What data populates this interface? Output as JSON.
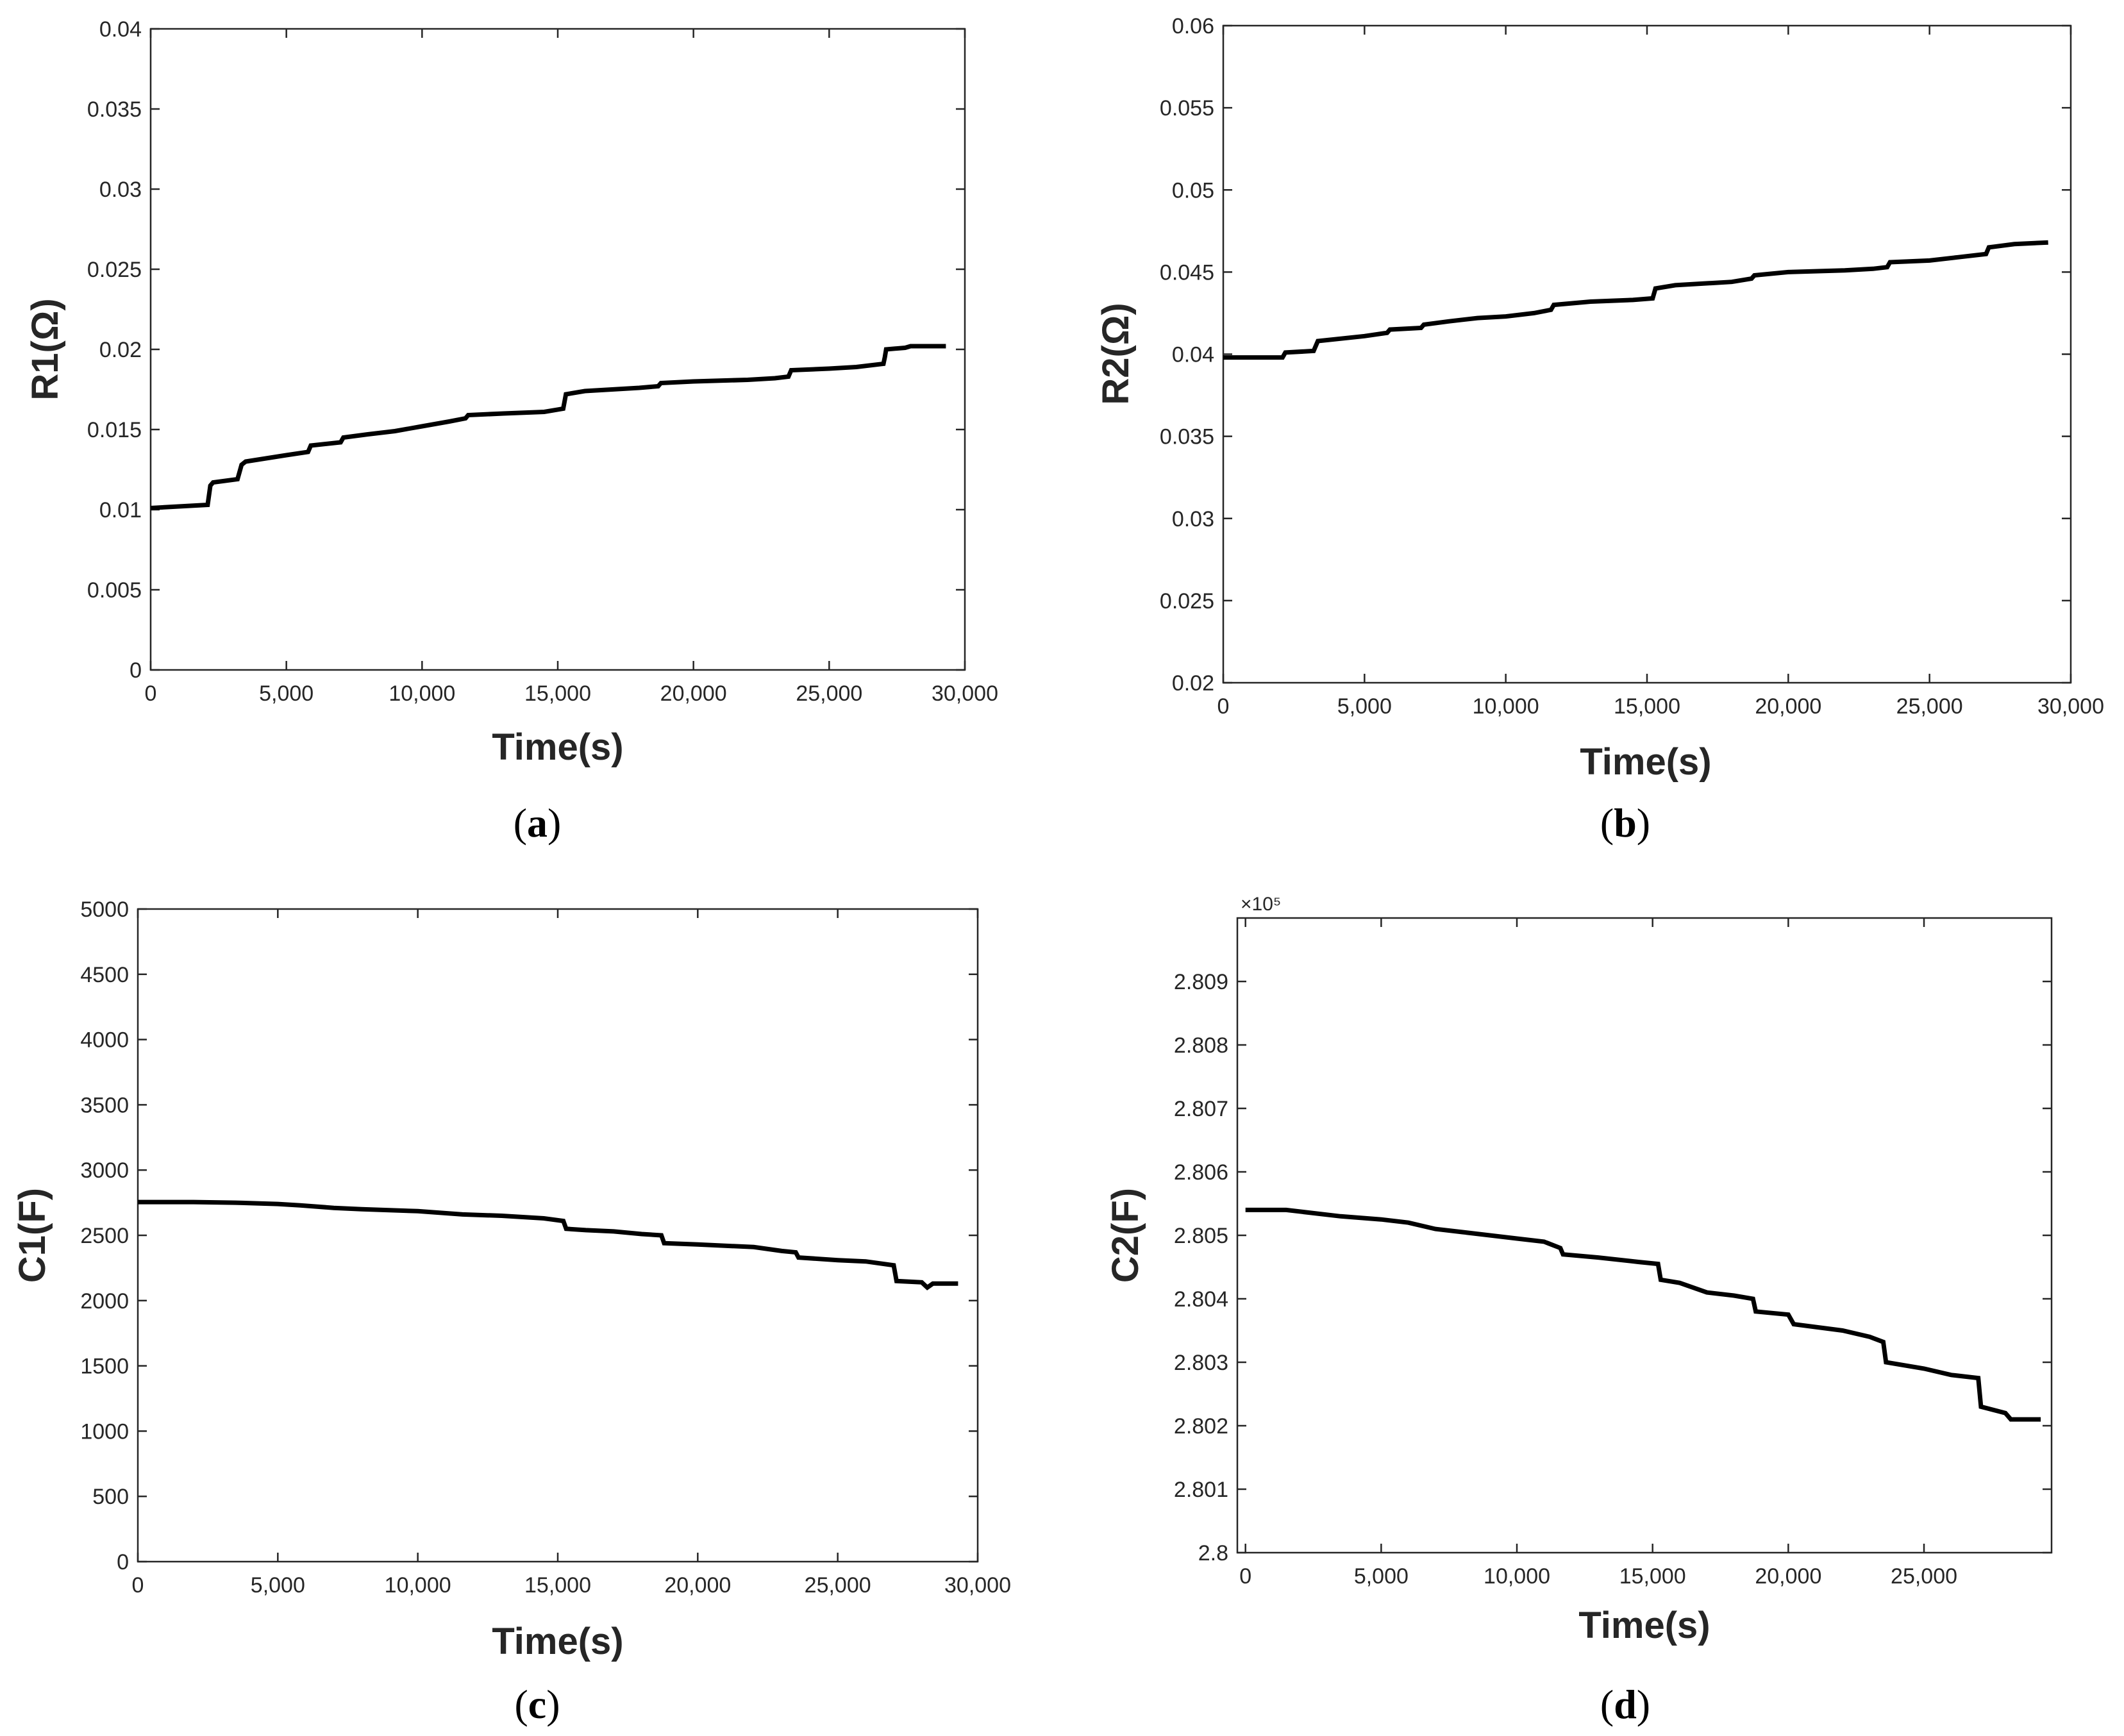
{
  "colors": {
    "series": "#000000",
    "axis": "#262626",
    "background": "#ffffff"
  },
  "chart_data": [
    {
      "id": "a",
      "type": "line",
      "caption": "(a)",
      "caption_letter": "a",
      "xlabel": "Time(s)",
      "ylabel": "R1(Ω)",
      "xlim": [
        0,
        30000
      ],
      "ylim": [
        0,
        0.04
      ],
      "xticks": [
        0,
        5000,
        10000,
        15000,
        20000,
        25000,
        30000
      ],
      "xtick_labels": [
        "0",
        "5,000",
        "10,000",
        "15,000",
        "20,000",
        "25,000",
        "30,000"
      ],
      "yticks": [
        0,
        0.005,
        0.01,
        0.015,
        0.02,
        0.025,
        0.03,
        0.035,
        0.04
      ],
      "ytick_labels": [
        "0",
        "0.005",
        "0.01",
        "0.015",
        "0.02",
        "0.025",
        "0.03",
        "0.035",
        "0.04"
      ],
      "exponent_label": "",
      "series": [
        {
          "name": "R1",
          "x": [
            0,
            2100,
            2200,
            2300,
            3200,
            3350,
            3500,
            5000,
            5800,
            5900,
            7000,
            7100,
            8000,
            9000,
            10000,
            11000,
            11600,
            11700,
            13000,
            14500,
            15200,
            15300,
            16000,
            17000,
            18000,
            18700,
            18800,
            20000,
            22000,
            23000,
            23500,
            23600,
            25000,
            26000,
            27000,
            27050,
            27100,
            27800,
            28000,
            29300
          ],
          "y": [
            0.0101,
            0.0103,
            0.0115,
            0.0117,
            0.0119,
            0.0128,
            0.013,
            0.0134,
            0.0136,
            0.014,
            0.0142,
            0.0145,
            0.0147,
            0.0149,
            0.0152,
            0.0155,
            0.0157,
            0.0159,
            0.016,
            0.0161,
            0.0163,
            0.0172,
            0.0174,
            0.0175,
            0.0176,
            0.0177,
            0.0179,
            0.018,
            0.0181,
            0.0182,
            0.0183,
            0.0187,
            0.0188,
            0.0189,
            0.0191,
            0.0195,
            0.02,
            0.0201,
            0.0202,
            0.0202
          ]
        }
      ]
    },
    {
      "id": "b",
      "type": "line",
      "caption": "(b)",
      "caption_letter": "b",
      "xlabel": "Time(s)",
      "ylabel": "R2(Ω)",
      "xlim": [
        0,
        30000
      ],
      "ylim": [
        0.02,
        0.06
      ],
      "xticks": [
        0,
        5000,
        10000,
        15000,
        20000,
        25000,
        30000
      ],
      "xtick_labels": [
        "0",
        "5,000",
        "10,000",
        "15,000",
        "20,000",
        "25,000",
        "30,000"
      ],
      "yticks": [
        0.02,
        0.025,
        0.03,
        0.035,
        0.04,
        0.045,
        0.05,
        0.055,
        0.06
      ],
      "ytick_labels": [
        "0.02",
        "0.025",
        "0.03",
        "0.035",
        "0.04",
        "0.045",
        "0.05",
        "0.055",
        "0.06"
      ],
      "exponent_label": "",
      "series": [
        {
          "name": "R2",
          "x": [
            0,
            2100,
            2200,
            3200,
            3350,
            5000,
            5800,
            5900,
            7000,
            7100,
            8000,
            9000,
            10000,
            11000,
            11600,
            11700,
            13000,
            14500,
            15200,
            15300,
            16000,
            17000,
            18000,
            18700,
            18800,
            20000,
            22000,
            23000,
            23500,
            23600,
            25000,
            26000,
            27000,
            27100,
            28000,
            29200
          ],
          "y": [
            0.0398,
            0.0398,
            0.0401,
            0.0402,
            0.0408,
            0.0411,
            0.0413,
            0.0415,
            0.0416,
            0.0418,
            0.042,
            0.0422,
            0.0423,
            0.0425,
            0.0427,
            0.043,
            0.0432,
            0.0433,
            0.0434,
            0.044,
            0.0442,
            0.0443,
            0.0444,
            0.0446,
            0.0448,
            0.045,
            0.0451,
            0.0452,
            0.0453,
            0.0456,
            0.0457,
            0.0459,
            0.0461,
            0.0465,
            0.0467,
            0.0468
          ]
        }
      ]
    },
    {
      "id": "c",
      "type": "line",
      "caption": "(c)",
      "caption_letter": "c",
      "xlabel": "Time(s)",
      "ylabel": "C1(F)",
      "xlim": [
        0,
        30000
      ],
      "ylim": [
        0,
        5000
      ],
      "xticks": [
        0,
        5000,
        10000,
        15000,
        20000,
        25000,
        30000
      ],
      "xtick_labels": [
        "0",
        "5,000",
        "10,000",
        "15,000",
        "20,000",
        "25,000",
        "30,000"
      ],
      "yticks": [
        0,
        500,
        1000,
        1500,
        2000,
        2500,
        3000,
        3500,
        4000,
        4500,
        5000
      ],
      "ytick_labels": [
        "0",
        "500",
        "1000",
        "1500",
        "2000",
        "2500",
        "3000",
        "3500",
        "4000",
        "4500",
        "5000"
      ],
      "exponent_label": "",
      "series": [
        {
          "name": "C1",
          "x": [
            0,
            2000,
            3500,
            5000,
            5800,
            7000,
            8000,
            10000,
            11600,
            13000,
            14500,
            15200,
            15300,
            16000,
            17000,
            18000,
            18700,
            18800,
            20000,
            22000,
            23000,
            23500,
            23600,
            25000,
            26000,
            27000,
            27100,
            28000,
            28200,
            28400,
            29300
          ],
          "y": [
            2755,
            2755,
            2750,
            2740,
            2730,
            2710,
            2700,
            2685,
            2660,
            2650,
            2630,
            2610,
            2550,
            2540,
            2530,
            2510,
            2500,
            2440,
            2430,
            2410,
            2380,
            2370,
            2330,
            2310,
            2300,
            2270,
            2150,
            2140,
            2100,
            2130,
            2130
          ]
        }
      ]
    },
    {
      "id": "d",
      "type": "line",
      "caption": "(d)",
      "caption_letter": "d",
      "xlabel": "Time(s)",
      "ylabel": "C2(F)",
      "xlim": [
        -300,
        29700
      ],
      "ylim": [
        2.8,
        2.81
      ],
      "xticks": [
        0,
        5000,
        10000,
        15000,
        20000,
        25000
      ],
      "xtick_labels": [
        "0",
        "5,000",
        "10,000",
        "15,000",
        "20,000",
        "25,000"
      ],
      "yticks": [
        2.8,
        2.801,
        2.802,
        2.803,
        2.804,
        2.805,
        2.806,
        2.807,
        2.808,
        2.809
      ],
      "ytick_labels": [
        "2.8",
        "2.801",
        "2.802",
        "2.803",
        "2.804",
        "2.805",
        "2.806",
        "2.807",
        "2.808",
        "2.809"
      ],
      "exponent_label": "×10⁵",
      "series": [
        {
          "name": "C2 (×10^5)",
          "x": [
            0,
            1500,
            3500,
            5000,
            6000,
            7000,
            8000,
            9000,
            10000,
            11000,
            11600,
            11700,
            13000,
            14500,
            15200,
            15300,
            16000,
            17000,
            18000,
            18700,
            18800,
            20000,
            20200,
            22000,
            23000,
            23500,
            23600,
            25000,
            26000,
            27000,
            27100,
            28000,
            28200,
            29300
          ],
          "y": [
            2.8054,
            2.8054,
            2.8053,
            2.80525,
            2.8052,
            2.8051,
            2.80505,
            2.805,
            2.80495,
            2.8049,
            2.8048,
            2.8047,
            2.80465,
            2.80458,
            2.80455,
            2.8043,
            2.80425,
            2.8041,
            2.80405,
            2.804,
            2.8038,
            2.80375,
            2.8036,
            2.8035,
            2.8034,
            2.80332,
            2.803,
            2.8029,
            2.8028,
            2.80275,
            2.8023,
            2.8022,
            2.8021,
            2.8021
          ]
        }
      ]
    }
  ]
}
